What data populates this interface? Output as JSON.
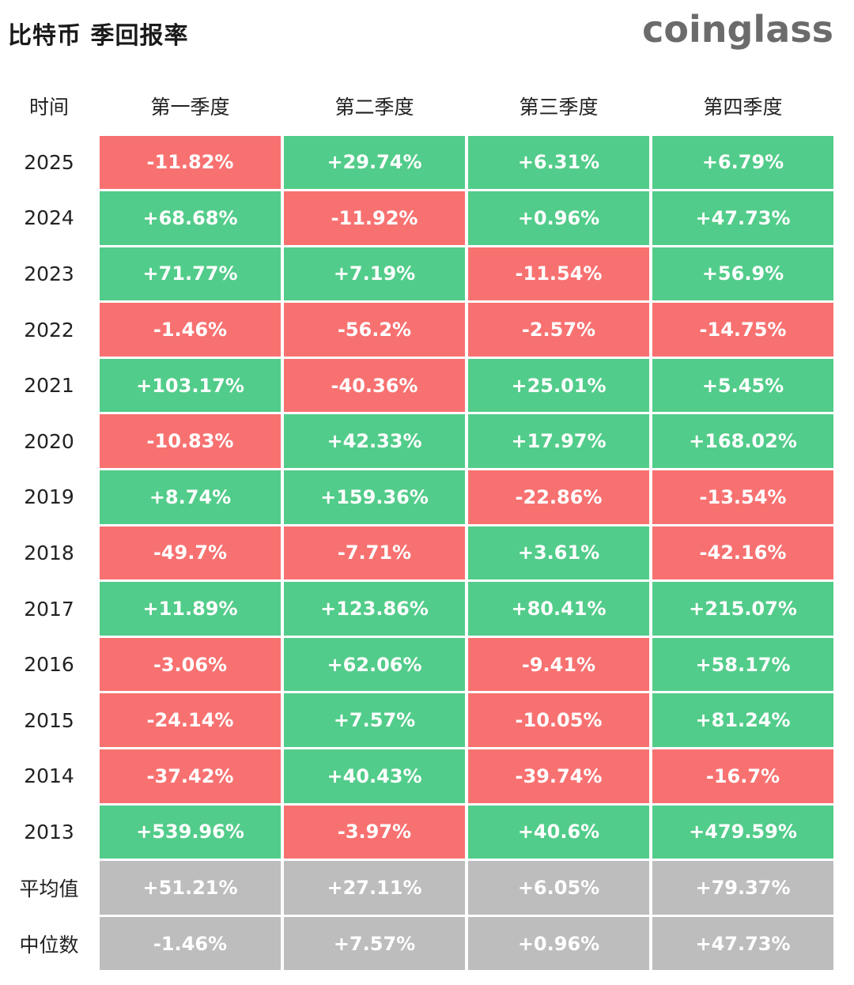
{
  "title": "比特币 季回报率",
  "logo": "coinglass",
  "header": {
    "time_label": "时间",
    "quarters": [
      "第一季度",
      "第二季度",
      "第三季度",
      "第四季度"
    ]
  },
  "colors": {
    "positive": "#52cc8a",
    "negative": "#f87171",
    "stat": "#bdbdbd"
  },
  "rows": [
    {
      "year": "2025",
      "values": [
        "-11.82%",
        "+29.74%",
        "+6.31%",
        "+6.79%"
      ]
    },
    {
      "year": "2024",
      "values": [
        "+68.68%",
        "-11.92%",
        "+0.96%",
        "+47.73%"
      ]
    },
    {
      "year": "2023",
      "values": [
        "+71.77%",
        "+7.19%",
        "-11.54%",
        "+56.9%"
      ]
    },
    {
      "year": "2022",
      "values": [
        "-1.46%",
        "-56.2%",
        "-2.57%",
        "-14.75%"
      ]
    },
    {
      "year": "2021",
      "values": [
        "+103.17%",
        "-40.36%",
        "+25.01%",
        "+5.45%"
      ]
    },
    {
      "year": "2020",
      "values": [
        "-10.83%",
        "+42.33%",
        "+17.97%",
        "+168.02%"
      ]
    },
    {
      "year": "2019",
      "values": [
        "+8.74%",
        "+159.36%",
        "-22.86%",
        "-13.54%"
      ]
    },
    {
      "year": "2018",
      "values": [
        "-49.7%",
        "-7.71%",
        "+3.61%",
        "-42.16%"
      ]
    },
    {
      "year": "2017",
      "values": [
        "+11.89%",
        "+123.86%",
        "+80.41%",
        "+215.07%"
      ]
    },
    {
      "year": "2016",
      "values": [
        "-3.06%",
        "+62.06%",
        "-9.41%",
        "+58.17%"
      ]
    },
    {
      "year": "2015",
      "values": [
        "-24.14%",
        "+7.57%",
        "-10.05%",
        "+81.24%"
      ]
    },
    {
      "year": "2014",
      "values": [
        "-37.42%",
        "+40.43%",
        "-39.74%",
        "-16.7%"
      ]
    },
    {
      "year": "2013",
      "values": [
        "+539.96%",
        "-3.97%",
        "+40.6%",
        "+479.59%"
      ]
    }
  ],
  "stats": [
    {
      "label": "平均值",
      "values": [
        "+51.21%",
        "+27.11%",
        "+6.05%",
        "+79.37%"
      ]
    },
    {
      "label": "中位数",
      "values": [
        "-1.46%",
        "+7.57%",
        "+0.96%",
        "+47.73%"
      ]
    }
  ]
}
